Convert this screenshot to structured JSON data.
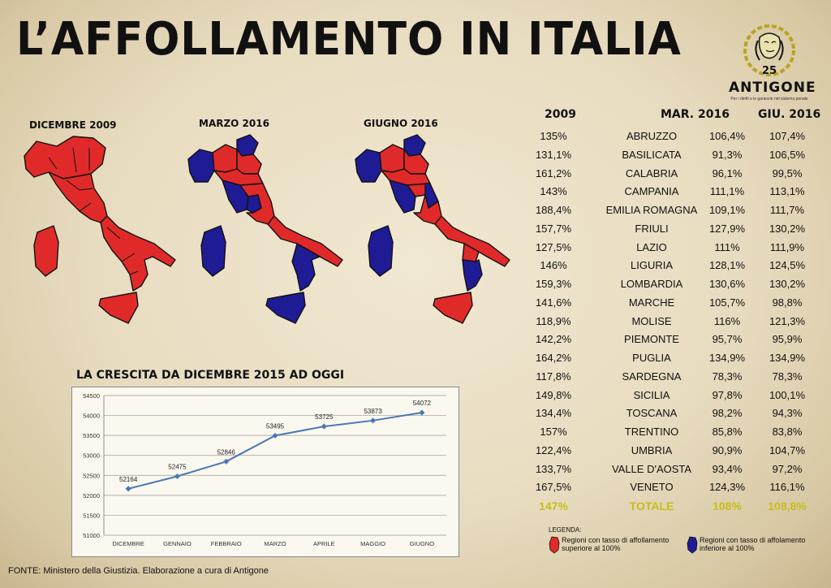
{
  "title": "L’AFFOLLAMENTO IN ITALIA",
  "logo": {
    "icon": "antigone-head-chain-logo",
    "number": "25",
    "name": "ANTIGONE",
    "subtitle": "Per i diritti e le garanzie nel sistema penale"
  },
  "maps": [
    {
      "title": "DICEMBRE 2009"
    },
    {
      "title": "MARZO 2016"
    },
    {
      "title": "GIUGNO 2016"
    }
  ],
  "map_colors": {
    "over_100": "#e02a2a",
    "under_100": "#1f1b94"
  },
  "table": {
    "headers": {
      "y2009": "2009",
      "mar2016": "MAR. 2016",
      "giu2016": "GIU. 2016"
    },
    "rows": [
      {
        "y2009": "135%",
        "region": "ABRUZZO",
        "mar2016": "106,4%",
        "giu2016": "107,4%"
      },
      {
        "y2009": "131,1%",
        "region": "BASILICATA",
        "mar2016": "91,3%",
        "giu2016": "106,5%"
      },
      {
        "y2009": "161,2%",
        "region": "CALABRIA",
        "mar2016": "96,1%",
        "giu2016": "99,5%"
      },
      {
        "y2009": "143%",
        "region": "CAMPANIA",
        "mar2016": "111,1%",
        "giu2016": "113,1%"
      },
      {
        "y2009": "188,4%",
        "region": "EMILIA ROMAGNA",
        "mar2016": "109,1%",
        "giu2016": "111,7%"
      },
      {
        "y2009": "157,7%",
        "region": "FRIULI",
        "mar2016": "127,9%",
        "giu2016": "130,2%"
      },
      {
        "y2009": "127,5%",
        "region": "LAZIO",
        "mar2016": "111%",
        "giu2016": "111,9%"
      },
      {
        "y2009": "146%",
        "region": "LIGURIA",
        "mar2016": "128,1%",
        "giu2016": "124,5%"
      },
      {
        "y2009": "159,3%",
        "region": "LOMBARDIA",
        "mar2016": "130,6%",
        "giu2016": "130,2%"
      },
      {
        "y2009": "141,6%",
        "region": "MARCHE",
        "mar2016": "105,7%",
        "giu2016": "98,8%"
      },
      {
        "y2009": "118,9%",
        "region": "MOLISE",
        "mar2016": "116%",
        "giu2016": "121,3%"
      },
      {
        "y2009": "142,2%",
        "region": "PIEMONTE",
        "mar2016": "95,7%",
        "giu2016": "95,9%"
      },
      {
        "y2009": "164,2%",
        "region": "PUGLIA",
        "mar2016": "134,9%",
        "giu2016": "134,9%"
      },
      {
        "y2009": "117,8%",
        "region": "SARDEGNA",
        "mar2016": "78,3%",
        "giu2016": "78,3%"
      },
      {
        "y2009": "149,8%",
        "region": "SICILIA",
        "mar2016": "97,8%",
        "giu2016": "100,1%"
      },
      {
        "y2009": "134,4%",
        "region": "TOSCANA",
        "mar2016": "98,2%",
        "giu2016": "94,3%"
      },
      {
        "y2009": "157%",
        "region": "TRENTINO",
        "mar2016": "85,8%",
        "giu2016": "83,8%"
      },
      {
        "y2009": "122,4%",
        "region": "UMBRIA",
        "mar2016": "90,9%",
        "giu2016": "104,7%"
      },
      {
        "y2009": "133,7%",
        "region": "VALLE D'AOSTA",
        "mar2016": "93,4%",
        "giu2016": "97,2%"
      },
      {
        "y2009": "167,5%",
        "region": "VENETO",
        "mar2016": "124,3%",
        "giu2016": "116,1%"
      }
    ],
    "total": {
      "y2009": "147%",
      "region": "TOTALE",
      "mar2016": "108%",
      "giu2016": "108,8%"
    },
    "total_color": "#c6bd1a"
  },
  "legend": {
    "title": "LEGENDA:",
    "items": [
      {
        "label": "Regioni con tasso di affollamento superiore al 100%",
        "color": "#e02a2a",
        "icon": "sardinia-red-icon"
      },
      {
        "label": "Regioni con tasso di affolamento inferiore al 100%",
        "color": "#1f1b94",
        "icon": "sardinia-blue-icon"
      }
    ]
  },
  "chart_data": {
    "type": "line",
    "title": "LA CRESCITA DA DICEMBRE 2015 AD OGGI",
    "xlabel": "",
    "ylabel": "",
    "categories": [
      "DICEMBRE",
      "GENNAIO",
      "FEBBRAIO",
      "MARZO",
      "APRILE",
      "MAGGIO",
      "GIUGNO"
    ],
    "values": [
      52164,
      52475,
      52846,
      53495,
      53725,
      53873,
      54072
    ],
    "ylim": [
      51000,
      54500
    ],
    "yticks": [
      51000,
      51500,
      52000,
      52500,
      53000,
      53500,
      54000,
      54500
    ],
    "grid": true,
    "color": "#4a78b4"
  },
  "source": "FONTE: Ministero della Giustizia. Elaborazione a cura di Antigone"
}
